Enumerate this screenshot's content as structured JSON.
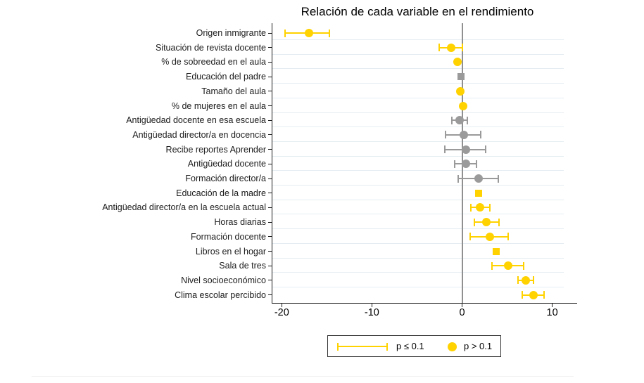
{
  "title": "Relación de cada variable en el rendimiento",
  "colors": {
    "highlight_yellow": "#FFD200",
    "muted_gray": "#9A9A9A",
    "zero_line": "#909090",
    "gridline": "#E5EDF2",
    "axis": "#1A1A1A"
  },
  "chart_data": {
    "type": "scatter",
    "subtype": "coefficient-plot-with-error-bars",
    "title": "Relación de cada variable en el rendimiento",
    "xlabel": "",
    "ylabel": "",
    "xlim": [
      -21.5,
      11.5
    ],
    "x_ticks": [
      -20,
      -10,
      0,
      10
    ],
    "zero_line_x": 0,
    "grid": "horizontal-light",
    "legend_position": "bottom-center-boxed",
    "legend_items": [
      {
        "label": "p ≤ 0.1",
        "symbol": "error-bar",
        "color": "#FFD200"
      },
      {
        "label": "p > 0.1",
        "symbol": "circle",
        "color": "#FFD200"
      }
    ],
    "points": [
      {
        "label": "Origen inmigrante",
        "estimate": -17.0,
        "ci_low": -19.6,
        "ci_high": -14.7,
        "color": "#FFD200",
        "marker": "circle"
      },
      {
        "label": "Situación de revista docente",
        "estimate": -1.2,
        "ci_low": -2.5,
        "ci_high": 0.0,
        "color": "#FFD200",
        "marker": "circle"
      },
      {
        "label": "% de sobreedad en el aula",
        "estimate": -0.5,
        "ci_low": null,
        "ci_high": null,
        "color": "#FFD200",
        "marker": "circle"
      },
      {
        "label": "Educación del padre",
        "estimate": -0.1,
        "ci_low": null,
        "ci_high": null,
        "color": "#9A9A9A",
        "marker": "square"
      },
      {
        "label": "Tamaño del aula",
        "estimate": -0.2,
        "ci_low": null,
        "ci_high": null,
        "color": "#FFD200",
        "marker": "circle"
      },
      {
        "label": "% de mujeres en el aula",
        "estimate": 0.1,
        "ci_low": null,
        "ci_high": null,
        "color": "#FFD200",
        "marker": "circle"
      },
      {
        "label": "Antigüedad docente en esa escuela",
        "estimate": -0.3,
        "ci_low": -1.1,
        "ci_high": 0.6,
        "color": "#9A9A9A",
        "marker": "circle"
      },
      {
        "label": "Antigüedad director/a en docencia",
        "estimate": 0.2,
        "ci_low": -1.8,
        "ci_high": 2.1,
        "color": "#9A9A9A",
        "marker": "circle"
      },
      {
        "label": "Recibe reportes Aprender",
        "estimate": 0.4,
        "ci_low": -1.9,
        "ci_high": 2.6,
        "color": "#9A9A9A",
        "marker": "circle"
      },
      {
        "label": "Antigüedad docente",
        "estimate": 0.4,
        "ci_low": -0.8,
        "ci_high": 1.6,
        "color": "#9A9A9A",
        "marker": "circle"
      },
      {
        "label": "Formación director/a",
        "estimate": 1.8,
        "ci_low": -0.4,
        "ci_high": 4.0,
        "color": "#9A9A9A",
        "marker": "circle"
      },
      {
        "label": "Educación de la madre",
        "estimate": 1.8,
        "ci_low": null,
        "ci_high": null,
        "color": "#FFD200",
        "marker": "square"
      },
      {
        "label": "Antigüedad director/a en la escuela actual",
        "estimate": 2.0,
        "ci_low": 1.0,
        "ci_high": 3.1,
        "color": "#FFD200",
        "marker": "circle"
      },
      {
        "label": "Horas diarias",
        "estimate": 2.7,
        "ci_low": 1.4,
        "ci_high": 4.1,
        "color": "#FFD200",
        "marker": "circle"
      },
      {
        "label": "Formación docente",
        "estimate": 3.1,
        "ci_low": 0.9,
        "ci_high": 5.1,
        "color": "#FFD200",
        "marker": "circle"
      },
      {
        "label": "Libros en el hogar",
        "estimate": 3.8,
        "ci_low": null,
        "ci_high": null,
        "color": "#FFD200",
        "marker": "square"
      },
      {
        "label": "Sala de tres",
        "estimate": 5.1,
        "ci_low": 3.3,
        "ci_high": 6.8,
        "color": "#FFD200",
        "marker": "circle"
      },
      {
        "label": "Nivel socioeconómico",
        "estimate": 7.1,
        "ci_low": 6.2,
        "ci_high": 7.9,
        "color": "#FFD200",
        "marker": "circle"
      },
      {
        "label": "Clima escolar percibido",
        "estimate": 7.9,
        "ci_low": 6.7,
        "ci_high": 9.1,
        "color": "#FFD200",
        "marker": "circle"
      }
    ]
  }
}
